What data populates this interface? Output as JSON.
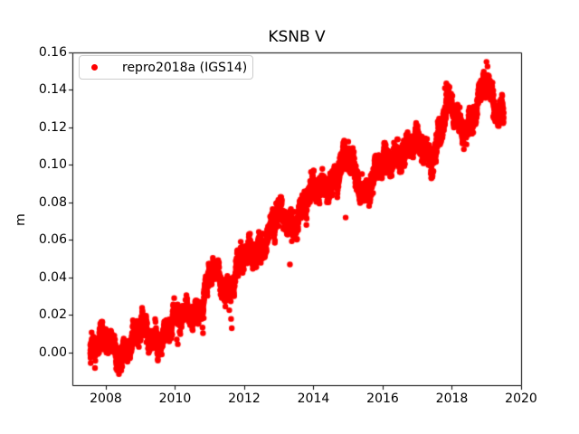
{
  "chart_data": {
    "type": "scatter",
    "title": "KSNB V",
    "xlabel": "",
    "ylabel": "m",
    "grid": false,
    "background": "#ffffff",
    "axis_color": "#000000",
    "text_color": "#000000",
    "xlim": [
      2007.034,
      2020.0
    ],
    "ylim": [
      -0.01735,
      0.16
    ],
    "x_ticks": [
      2008,
      2010,
      2012,
      2014,
      2016,
      2018,
      2020
    ],
    "y_ticks": [
      0.0,
      0.02,
      0.04,
      0.06,
      0.08,
      0.1,
      0.12,
      0.14,
      0.16
    ],
    "legend": {
      "label": "repro2018a (IGS14)",
      "position": "upper-left",
      "marker": "dot",
      "marker_color": "#ff0000",
      "border_color": "#cccccc"
    },
    "series": [
      {
        "name": "repro2018a (IGS14)",
        "color": "#ff0000",
        "marker": "dot",
        "marker_radius_px": 3.2,
        "t_start": 2007.55,
        "t_end": 2019.5,
        "n_points": 4360,
        "seed": 20180714,
        "trend_anchors": [
          [
            2007.55,
            0.001
          ],
          [
            2007.85,
            0.007
          ],
          [
            2008.1,
            0.004
          ],
          [
            2008.45,
            0.0
          ],
          [
            2008.75,
            0.005
          ],
          [
            2009.05,
            0.013
          ],
          [
            2009.45,
            0.007
          ],
          [
            2009.75,
            0.01
          ],
          [
            2010.0,
            0.017
          ],
          [
            2010.4,
            0.024
          ],
          [
            2010.75,
            0.021
          ],
          [
            2011.1,
            0.045
          ],
          [
            2011.55,
            0.033
          ],
          [
            2011.95,
            0.05
          ],
          [
            2012.3,
            0.054
          ],
          [
            2012.65,
            0.061
          ],
          [
            2013.0,
            0.074
          ],
          [
            2013.4,
            0.069
          ],
          [
            2013.8,
            0.081
          ],
          [
            2014.15,
            0.088
          ],
          [
            2014.55,
            0.092
          ],
          [
            2015.0,
            0.104
          ],
          [
            2015.45,
            0.085
          ],
          [
            2016.0,
            0.1
          ],
          [
            2016.6,
            0.108
          ],
          [
            2017.0,
            0.111
          ],
          [
            2017.45,
            0.104
          ],
          [
            2017.9,
            0.133
          ],
          [
            2018.25,
            0.12
          ],
          [
            2018.6,
            0.126
          ],
          [
            2018.95,
            0.143
          ],
          [
            2019.15,
            0.136
          ],
          [
            2019.35,
            0.128
          ],
          [
            2019.5,
            0.133
          ]
        ],
        "seasonal": {
          "annual_amp": 0.0025,
          "annual_phase": 0.97
        },
        "wander": [
          {
            "freq": 3.3,
            "amp": 0.003,
            "phase": 1.2
          },
          {
            "freq": 7.7,
            "amp": 0.002,
            "phase": 4.0
          }
        ],
        "noise_sd": 0.0028,
        "clip": [
          -0.016,
          0.158
        ],
        "outliers": [
          [
            2008.3,
            -0.0085
          ],
          [
            2008.33,
            -0.0095
          ],
          [
            2008.38,
            -0.0115
          ],
          [
            2010.05,
            0.007
          ],
          [
            2010.08,
            0.0045
          ],
          [
            2011.62,
            0.018
          ],
          [
            2011.64,
            0.013
          ],
          [
            2013.32,
            0.047
          ],
          [
            2014.93,
            0.072
          ],
          [
            2017.8,
            0.141
          ],
          [
            2017.84,
            0.1435
          ],
          [
            2019.0,
            0.155
          ],
          [
            2019.03,
            0.1525
          ]
        ]
      }
    ]
  },
  "layout_labels": {
    "figure": "matplotlib scatter figure"
  }
}
